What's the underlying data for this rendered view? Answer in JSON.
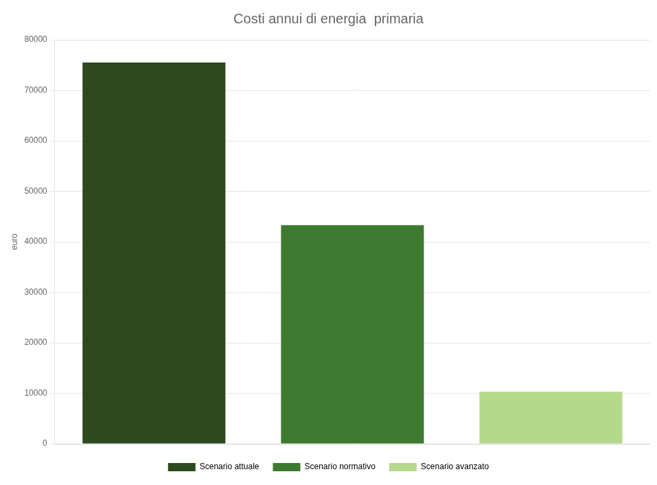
{
  "chart_data": {
    "type": "bar",
    "title": "Costi annui di energia  primaria",
    "categories": [
      "Scenario attuale",
      "Scenario normativo",
      "Scenario avanzato"
    ],
    "values": [
      75500,
      43300,
      10300
    ],
    "colors": [
      "#2d4a1e",
      "#3d7a30",
      "#b5d98a"
    ],
    "ylabel": "euro",
    "ylim": [
      0,
      80000
    ],
    "yticks": [
      0,
      10000,
      20000,
      30000,
      40000,
      50000,
      60000,
      70000,
      80000
    ],
    "grid": true,
    "legend": "bottom",
    "tick_labels": "y"
  }
}
